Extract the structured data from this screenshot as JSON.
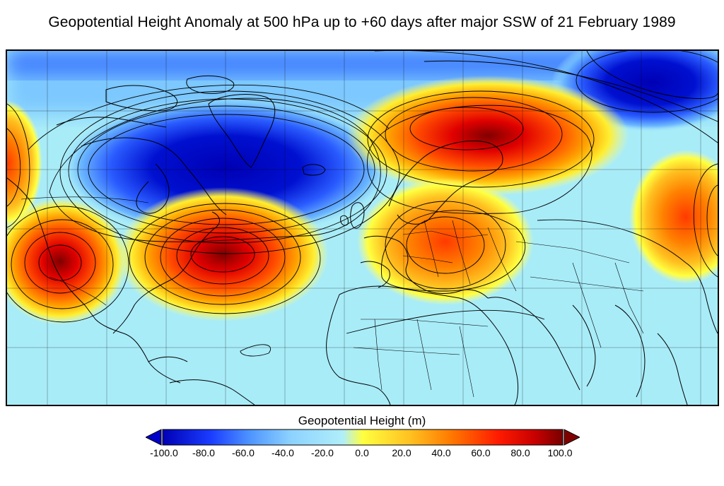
{
  "title": "Geopotential Height Anomaly at 500 hPa up to +60 days after major SSW of 21 February 1989",
  "colorbar": {
    "label": "Geopotential Height (m)",
    "ticks": [
      "-100.0",
      "-80.0",
      "-60.0",
      "-40.0",
      "-20.0",
      "0.0",
      "20.0",
      "40.0",
      "60.0",
      "80.0",
      "100.0"
    ],
    "range": [
      -100,
      100
    ],
    "extend": "both",
    "colors": [
      "#0000b4",
      "#1a3cff",
      "#4f96ff",
      "#8cd2ff",
      "#b0eefa",
      "#ffff40",
      "#ffc020",
      "#ff7a00",
      "#ff1a00",
      "#c80000",
      "#780000"
    ]
  },
  "map": {
    "projection": "cylindrical",
    "region": "North America – North Atlantic – Eurasia",
    "features": [
      "coastlines",
      "country-borders",
      "graticule",
      "contour-lines",
      "filled-anomaly-field"
    ],
    "anomaly_centers": [
      {
        "name": "greenland-low",
        "value": -100
      },
      {
        "name": "arctic-siberia-low",
        "value": -90
      },
      {
        "name": "north-atlantic-high",
        "value": 90
      },
      {
        "name": "western-north-america-high",
        "value": 75
      },
      {
        "name": "scandinavia-russia-high",
        "value": 70
      },
      {
        "name": "eastern-europe-high",
        "value": 55
      }
    ]
  }
}
